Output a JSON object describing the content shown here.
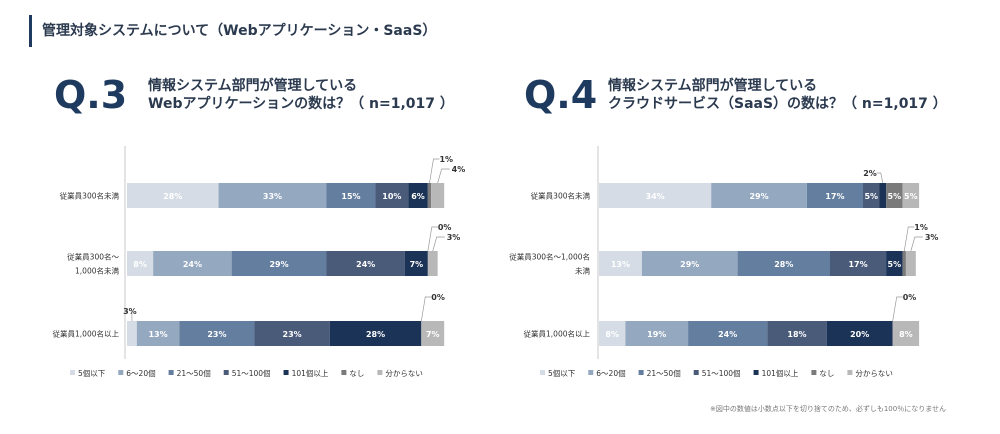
{
  "header": {
    "title": "管理対象システムについて（Webアプリケーション・SaaS）"
  },
  "q3": {
    "label": "Q.3",
    "title_line1": "情報システム部門が管理している",
    "title_line2": "Webアプリケーションの数は？（ n=1,017 ）"
  },
  "q4": {
    "label": "Q.4",
    "title_line1": "情報システム部門が管理している",
    "title_line2": "クラウドサービス（SaaS）の数は？（ n=1,017 ）"
  },
  "footnote": "※図中の数値は小数点以下を切り捨てのため、必ずしも100％になりません",
  "chart_data": [
    {
      "type": "bar",
      "orientation": "horizontal",
      "stacked": true,
      "title": "",
      "xlabel": "",
      "ylabel": "",
      "unit": "%",
      "categories": [
        "従業員300名未満",
        "従業員300名～1,000名未満",
        "従業員1,000名以上"
      ],
      "category_lines": [
        [
          "従業員300名未満"
        ],
        [
          "従業員300名～",
          "1,000名未満"
        ],
        [
          "従業員1,000名以上"
        ]
      ],
      "series": [
        {
          "name": "5個以下",
          "color": "#d5dce6",
          "values": [
            28,
            8,
            3
          ]
        },
        {
          "name": "6～20個",
          "color": "#94a8bf",
          "values": [
            33,
            24,
            13
          ]
        },
        {
          "name": "21～50個",
          "color": "#647e9f",
          "values": [
            15,
            29,
            23
          ]
        },
        {
          "name": "51～100個",
          "color": "#4a5b7a",
          "values": [
            10,
            24,
            23
          ]
        },
        {
          "name": "101個以上",
          "color": "#1c3358",
          "values": [
            6,
            7,
            28
          ]
        },
        {
          "name": "なし",
          "color": "#7a7a7a",
          "values": [
            1,
            0,
            0
          ]
        },
        {
          "name": "分からない",
          "color": "#b8b8b8",
          "values": [
            4,
            3,
            7
          ]
        }
      ],
      "legend": "bottom"
    },
    {
      "type": "bar",
      "orientation": "horizontal",
      "stacked": true,
      "title": "",
      "xlabel": "",
      "ylabel": "",
      "unit": "%",
      "categories": [
        "従業員300名未満",
        "従業員300名～1,000名未満",
        "従業員1,000名以上"
      ],
      "category_lines": [
        [
          "従業員300名未満"
        ],
        [
          "従業員300名～1,000名",
          "未満"
        ],
        [
          "従業員1,000名以上"
        ]
      ],
      "series": [
        {
          "name": "5個以下",
          "color": "#d5dce6",
          "values": [
            34,
            13,
            8
          ]
        },
        {
          "name": "6～20個",
          "color": "#94a8bf",
          "values": [
            29,
            29,
            19
          ]
        },
        {
          "name": "21～50個",
          "color": "#647e9f",
          "values": [
            17,
            28,
            24
          ]
        },
        {
          "name": "51～100個",
          "color": "#4a5b7a",
          "values": [
            5,
            17,
            18
          ]
        },
        {
          "name": "101個以上",
          "color": "#1c3358",
          "values": [
            2,
            5,
            20
          ]
        },
        {
          "name": "なし",
          "color": "#7a7a7a",
          "values": [
            5,
            1,
            0
          ]
        },
        {
          "name": "分からない",
          "color": "#b8b8b8",
          "values": [
            5,
            3,
            8
          ]
        }
      ],
      "legend": "bottom"
    }
  ]
}
